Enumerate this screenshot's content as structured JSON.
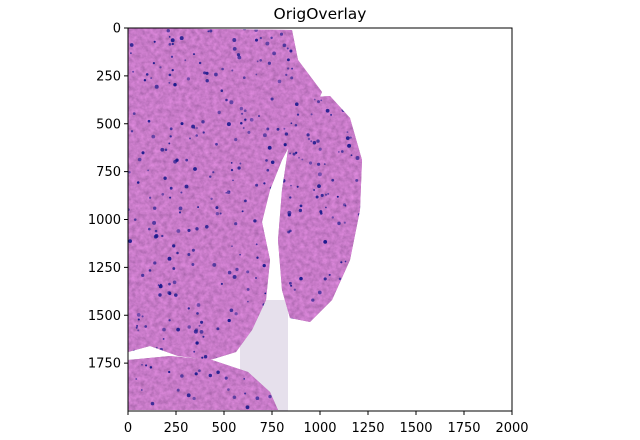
{
  "figure": {
    "title": "OrigOverlay",
    "image": {
      "description": "H&E-stained tissue section with blue nuclei overlay",
      "tissue_color": "#9a4f97",
      "nuclei_color": "#1a1a8c",
      "background_color": "#ffffff"
    },
    "x_axis": {
      "range": [
        0,
        2000
      ],
      "ticks": [
        "0",
        "250",
        "500",
        "750",
        "1000",
        "1250",
        "1500",
        "1750",
        "2000"
      ]
    },
    "y_axis": {
      "range": [
        0,
        2000
      ],
      "inverted": true,
      "ticks": [
        "0",
        "250",
        "500",
        "750",
        "1000",
        "1250",
        "1500",
        "1750"
      ]
    }
  }
}
